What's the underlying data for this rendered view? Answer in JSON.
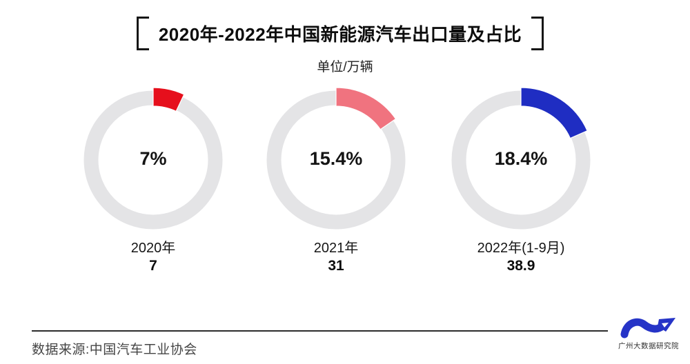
{
  "header": {
    "title": "2020年-2022年中国新能源汽车出口量及占比",
    "subtitle": "单位/万辆"
  },
  "chart_data": {
    "type": "pie",
    "subtype": "donut-progress-trio",
    "title": "2020年-2022年中国新能源汽车出口量及占比",
    "unit_label": "单位/万辆",
    "legend_position": "none",
    "track_color": "#e4e4e6",
    "start_angle_deg": 0,
    "direction": "clockwise",
    "categories": [
      "2020年",
      "2021年",
      "2022年(1-9月)"
    ],
    "donuts": [
      {
        "label": "2020年",
        "export_volume_wan": 7,
        "value_label": "7",
        "share_pct": 7,
        "pct_label": "7%",
        "color": "#e60f1c"
      },
      {
        "label": "2021年",
        "export_volume_wan": 31,
        "value_label": "31",
        "share_pct": 15.4,
        "pct_label": "15.4%",
        "color": "#f0737f"
      },
      {
        "label": "2022年(1-9月)",
        "export_volume_wan": 38.9,
        "value_label": "38.9",
        "share_pct": 18.4,
        "pct_label": "18.4%",
        "color": "#1f2dc2"
      }
    ]
  },
  "footer": {
    "source": "数据来源:中国汽车工业协会"
  },
  "logo": {
    "text": "广州大数据研究院",
    "wave_color": "#2634c7"
  }
}
